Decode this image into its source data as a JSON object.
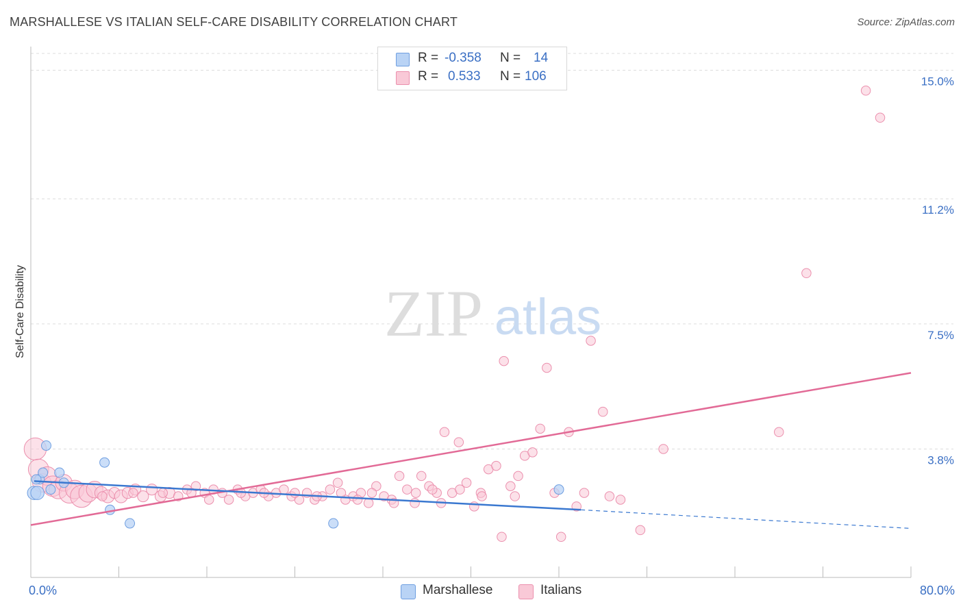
{
  "title": "MARSHALLESE VS ITALIAN SELF-CARE DISABILITY CORRELATION CHART",
  "source": "Source: ZipAtlas.com",
  "watermark": {
    "zip": "ZIP",
    "atlas": "atlas"
  },
  "stats": {
    "marshallese": {
      "r_label": "R =",
      "r": "-0.358",
      "n_label": "N =",
      "n": "14"
    },
    "italians": {
      "r_label": "R =",
      "r": "0.533",
      "n_label": "N =",
      "n": "106"
    }
  },
  "legend": {
    "marshallese": "Marshallese",
    "italians": "Italians"
  },
  "colors": {
    "marshallese_fill": "#b9d3f5",
    "marshallese_stroke": "#6e9ee0",
    "marshallese_line": "#3a78d0",
    "italians_fill": "#f9c9d7",
    "italians_stroke": "#eb8fad",
    "italians_line": "#e26a96",
    "axis_text": "#3a6fc4",
    "grid": "#dcdcdc"
  },
  "chart_data": {
    "type": "scatter",
    "title": "MARSHALLESE VS ITALIAN SELF-CARE DISABILITY CORRELATION CHART",
    "xlabel": "",
    "ylabel": "Self-Care Disability",
    "xlim": [
      0,
      80
    ],
    "ylim": [
      0,
      15.5
    ],
    "x_tick_labels": [
      "0.0%",
      "80.0%"
    ],
    "y_ticks": [
      3.8,
      7.5,
      11.2,
      15.0
    ],
    "y_tick_labels": [
      "3.8%",
      "7.5%",
      "11.2%",
      "15.0%"
    ],
    "series": [
      {
        "name": "Marshallese",
        "r": -0.358,
        "n": 14,
        "points": [
          [
            0.3,
            2.5,
            14
          ],
          [
            0.6,
            2.5,
            14
          ],
          [
            0.8,
            2.9,
            10
          ],
          [
            1.1,
            3.1,
            10
          ],
          [
            1.4,
            3.9,
            10
          ],
          [
            1.8,
            2.6,
            10
          ],
          [
            2.6,
            3.1,
            10
          ],
          [
            3.0,
            2.8,
            10
          ],
          [
            6.7,
            3.4,
            10
          ],
          [
            7.2,
            2.0,
            10
          ],
          [
            9.0,
            1.6,
            10
          ],
          [
            27.5,
            1.6,
            10
          ],
          [
            48.0,
            2.6,
            10
          ],
          [
            0.5,
            2.9,
            10
          ]
        ],
        "trend": {
          "x0": 0.3,
          "y0": 2.85,
          "x1": 50.0,
          "y1": 2.0
        },
        "trend_ext": {
          "x0": 50.0,
          "y0": 2.0,
          "x1": 80.0,
          "y1": 1.45
        }
      },
      {
        "name": "Italians",
        "r": 0.533,
        "n": 106,
        "points": [
          [
            0.4,
            3.8,
            24
          ],
          [
            0.7,
            3.2,
            22
          ],
          [
            1.0,
            2.8,
            20
          ],
          [
            1.5,
            3.0,
            20
          ],
          [
            2.0,
            2.7,
            22
          ],
          [
            2.5,
            2.6,
            20
          ],
          [
            3.0,
            2.8,
            18
          ],
          [
            3.5,
            2.5,
            22
          ],
          [
            4.0,
            2.6,
            20
          ],
          [
            4.6,
            2.4,
            24
          ],
          [
            5.2,
            2.5,
            20
          ],
          [
            5.8,
            2.6,
            18
          ],
          [
            6.4,
            2.5,
            14
          ],
          [
            7.0,
            2.4,
            14
          ],
          [
            7.6,
            2.5,
            12
          ],
          [
            8.2,
            2.4,
            14
          ],
          [
            8.8,
            2.5,
            12
          ],
          [
            9.5,
            2.6,
            12
          ],
          [
            10.2,
            2.4,
            12
          ],
          [
            11.0,
            2.6,
            12
          ],
          [
            11.8,
            2.4,
            12
          ],
          [
            12.6,
            2.5,
            12
          ],
          [
            13.4,
            2.4,
            10
          ],
          [
            14.2,
            2.6,
            10
          ],
          [
            15.0,
            2.7,
            10
          ],
          [
            15.8,
            2.5,
            10
          ],
          [
            16.6,
            2.6,
            10
          ],
          [
            17.4,
            2.5,
            10
          ],
          [
            18.0,
            2.3,
            10
          ],
          [
            18.8,
            2.6,
            10
          ],
          [
            19.5,
            2.4,
            10
          ],
          [
            20.2,
            2.5,
            10
          ],
          [
            20.9,
            2.6,
            10
          ],
          [
            21.6,
            2.4,
            10
          ],
          [
            22.3,
            2.5,
            10
          ],
          [
            23.0,
            2.6,
            10
          ],
          [
            23.7,
            2.4,
            10
          ],
          [
            24.4,
            2.3,
            10
          ],
          [
            25.1,
            2.5,
            10
          ],
          [
            25.8,
            2.3,
            10
          ],
          [
            26.5,
            2.4,
            10
          ],
          [
            27.2,
            2.6,
            10
          ],
          [
            27.9,
            2.8,
            10
          ],
          [
            28.6,
            2.3,
            10
          ],
          [
            29.3,
            2.4,
            10
          ],
          [
            30.0,
            2.5,
            10
          ],
          [
            30.7,
            2.2,
            10
          ],
          [
            31.4,
            2.7,
            10
          ],
          [
            32.1,
            2.4,
            10
          ],
          [
            32.8,
            2.3,
            10
          ],
          [
            33.5,
            3.0,
            10
          ],
          [
            34.2,
            2.6,
            10
          ],
          [
            34.9,
            2.2,
            10
          ],
          [
            35.5,
            3.0,
            10
          ],
          [
            36.2,
            2.7,
            10
          ],
          [
            36.9,
            2.5,
            10
          ],
          [
            37.6,
            4.3,
            10
          ],
          [
            38.3,
            2.5,
            10
          ],
          [
            38.9,
            4.0,
            10
          ],
          [
            39.6,
            2.8,
            10
          ],
          [
            40.3,
            2.1,
            10
          ],
          [
            40.9,
            2.5,
            10
          ],
          [
            41.6,
            3.2,
            10
          ],
          [
            42.3,
            3.3,
            10
          ],
          [
            43.0,
            6.4,
            10
          ],
          [
            43.6,
            2.7,
            10
          ],
          [
            44.3,
            3.0,
            10
          ],
          [
            44.9,
            3.6,
            10
          ],
          [
            45.6,
            3.7,
            10
          ],
          [
            46.3,
            4.4,
            10
          ],
          [
            46.9,
            6.2,
            10
          ],
          [
            47.6,
            2.5,
            10
          ],
          [
            48.2,
            1.2,
            10
          ],
          [
            48.9,
            4.3,
            10
          ],
          [
            49.6,
            2.1,
            10
          ],
          [
            50.3,
            2.5,
            10
          ],
          [
            50.9,
            7.0,
            10
          ],
          [
            52.0,
            4.9,
            10
          ],
          [
            52.6,
            2.4,
            10
          ],
          [
            53.6,
            2.3,
            10
          ],
          [
            55.4,
            1.4,
            10
          ],
          [
            57.5,
            3.8,
            10
          ],
          [
            68.0,
            4.3,
            10
          ],
          [
            70.5,
            9.0,
            10
          ],
          [
            75.9,
            14.4,
            10
          ],
          [
            77.2,
            13.6,
            10
          ],
          [
            6.5,
            2.4,
            10
          ],
          [
            9.3,
            2.5,
            10
          ],
          [
            12.0,
            2.5,
            10
          ],
          [
            14.6,
            2.5,
            10
          ],
          [
            16.2,
            2.3,
            10
          ],
          [
            19.1,
            2.5,
            10
          ],
          [
            21.2,
            2.5,
            10
          ],
          [
            24.0,
            2.5,
            10
          ],
          [
            26.0,
            2.4,
            10
          ],
          [
            28.2,
            2.5,
            10
          ],
          [
            29.7,
            2.3,
            10
          ],
          [
            31.0,
            2.5,
            10
          ],
          [
            33.0,
            2.2,
            10
          ],
          [
            35.0,
            2.5,
            10
          ],
          [
            36.5,
            2.6,
            10
          ],
          [
            37.3,
            2.2,
            10
          ],
          [
            39.0,
            2.6,
            10
          ],
          [
            41.0,
            2.4,
            10
          ],
          [
            42.8,
            1.2,
            10
          ],
          [
            44.0,
            2.4,
            10
          ]
        ],
        "trend": {
          "x0": 0.0,
          "y0": 1.55,
          "x1": 80.0,
          "y1": 6.05
        }
      }
    ]
  }
}
